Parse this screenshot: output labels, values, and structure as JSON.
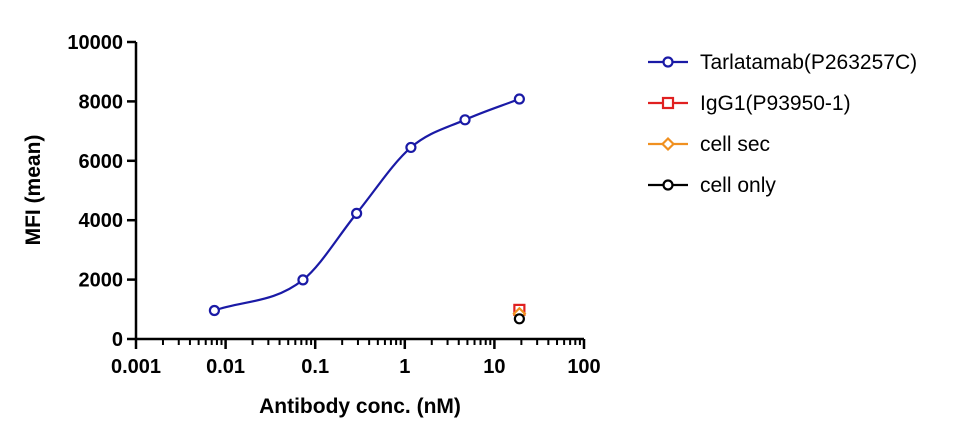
{
  "chart_data": {
    "type": "scatter",
    "title": "",
    "xlabel": "Antibody conc. (nM)",
    "ylabel": "MFI (mean)",
    "xscale": "log",
    "xlim": [
      0.001,
      100
    ],
    "ylim": [
      0,
      10000
    ],
    "x_ticks": [
      0.001,
      0.01,
      0.1,
      1,
      10,
      100
    ],
    "x_tick_labels": [
      "0.001",
      "0.01",
      "0.1",
      "1",
      "10",
      "100"
    ],
    "y_ticks": [
      0,
      2000,
      4000,
      6000,
      8000,
      10000
    ],
    "y_tick_labels": [
      "0",
      "2000",
      "4000",
      "6000",
      "8000",
      "10000"
    ],
    "grid": false,
    "legend_position": "right",
    "series": [
      {
        "name": "Tarlatamab(P263257C)",
        "marker": "circle",
        "color": "#1a1aa6",
        "fit_curve": true,
        "x": [
          0.0075,
          0.073,
          0.29,
          1.17,
          4.7,
          19
        ],
        "y": [
          960,
          1990,
          4230,
          6450,
          7380,
          8080
        ]
      },
      {
        "name": "IgG1(P93950-1)",
        "marker": "square",
        "color": "#e02020",
        "fit_curve": false,
        "x": [
          19
        ],
        "y": [
          980
        ]
      },
      {
        "name": "cell sec",
        "marker": "diamond",
        "color": "#f09020",
        "fit_curve": false,
        "x": [
          19
        ],
        "y": [
          850
        ]
      },
      {
        "name": "cell only",
        "marker": "circle",
        "color": "#000000",
        "fit_curve": false,
        "x": [
          19
        ],
        "y": [
          680
        ]
      }
    ]
  }
}
